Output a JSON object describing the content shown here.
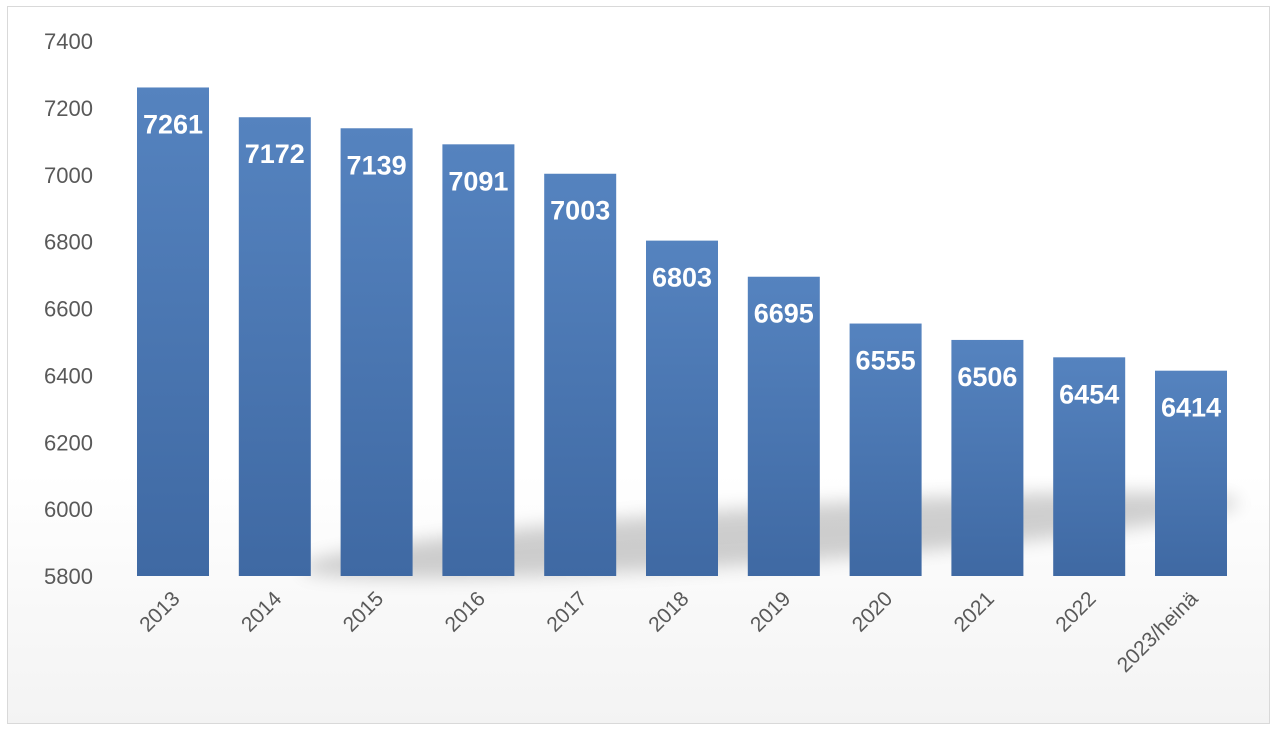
{
  "chart_data": {
    "type": "bar",
    "title": "",
    "xlabel": "",
    "ylabel": "",
    "categories": [
      "2013",
      "2014",
      "2015",
      "2016",
      "2017",
      "2018",
      "2019",
      "2020",
      "2021",
      "2022",
      "2023/heinä"
    ],
    "values": [
      7261,
      7172,
      7139,
      7091,
      7003,
      6803,
      6695,
      6555,
      6506,
      6454,
      6414
    ],
    "ylim": [
      5800,
      7400
    ],
    "yticks": [
      5800,
      6000,
      6200,
      6400,
      6600,
      6800,
      7000,
      7200,
      7400
    ],
    "grid": false,
    "legend": "none",
    "data_labels": true,
    "bar_color": "#4a78b4"
  }
}
